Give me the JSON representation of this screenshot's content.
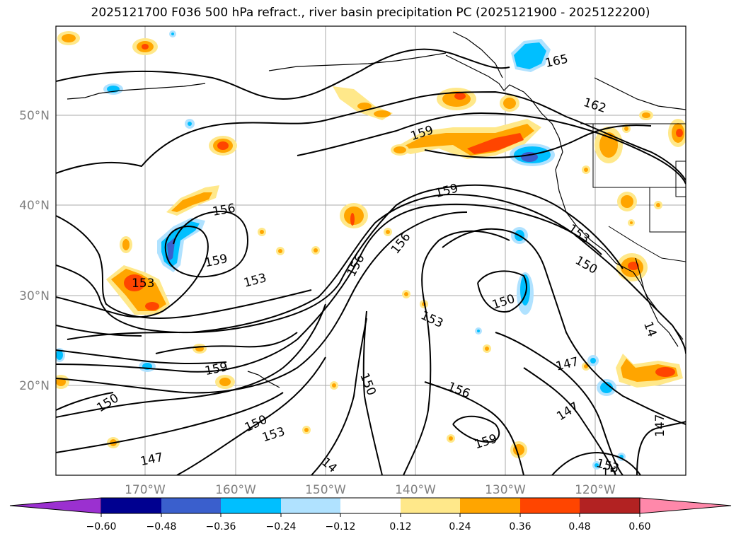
{
  "title": "2025121700 F036 500 hPa refract., river basin precipitation PC (2025121900 - 2025122200)",
  "lon_labels": [
    "170°W",
    "160°W",
    "150°W",
    "140°W",
    "130°W",
    "120°W"
  ],
  "lat_labels": [
    "50°N",
    "40°N",
    "30°N",
    "20°N"
  ],
  "contour_labels": [
    "165",
    "162",
    "159",
    "159",
    "156",
    "159",
    "153",
    "153",
    "156",
    "156",
    "153",
    "150",
    "150",
    "153",
    "147",
    "147",
    "159",
    "150",
    "156",
    "159",
    "150",
    "153",
    "147",
    "14",
    "147",
    "14",
    "153",
    "15",
    "150"
  ],
  "colorbar": {
    "ticks": [
      "−0.60",
      "−0.48",
      "−0.36",
      "−0.24",
      "−0.12",
      "0.12",
      "0.24",
      "0.36",
      "0.48",
      "0.60"
    ],
    "colors": [
      "#9b30d0",
      "#000090",
      "#3a5fcd",
      "#00bfff",
      "#b0e2ff",
      "#ffffff",
      "#ffe88a",
      "#ffa500",
      "#ff4500",
      "#b22222",
      "#ff88aa"
    ]
  }
}
